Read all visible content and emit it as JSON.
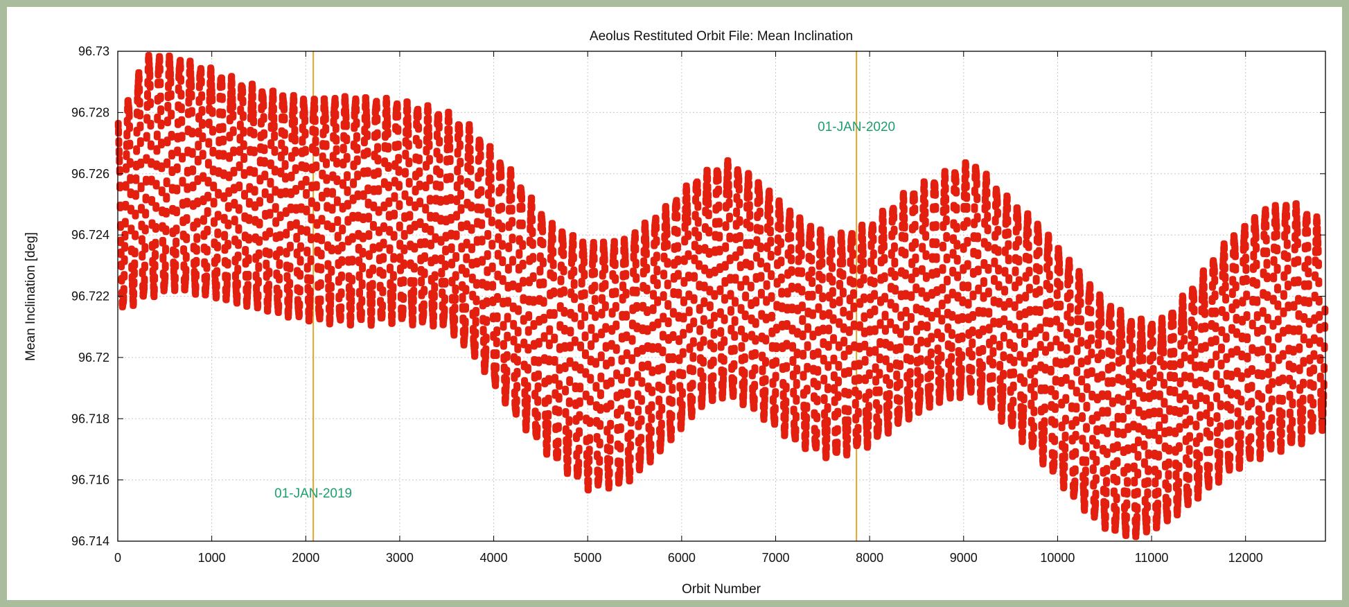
{
  "chart_data": {
    "type": "scatter",
    "title": "Aeolus Restituted Orbit File: Mean Inclination",
    "xlabel": "Orbit Number",
    "ylabel": "Mean Inclination [deg]",
    "xlim": [
      0,
      12850
    ],
    "ylim": [
      96.714,
      96.73
    ],
    "x_ticks": [
      0,
      1000,
      2000,
      3000,
      4000,
      5000,
      6000,
      7000,
      8000,
      9000,
      10000,
      11000,
      12000
    ],
    "y_ticks": [
      96.714,
      96.716,
      96.718,
      96.72,
      96.722,
      96.724,
      96.726,
      96.728,
      96.73
    ],
    "y_tick_labels": [
      "96.714",
      "96.716",
      "96.718",
      "96.72",
      "96.722",
      "96.724",
      "96.726",
      "96.728",
      "96.73"
    ],
    "grid": true,
    "series": [
      {
        "color": "#e3200f",
        "marker": "dots",
        "envelope": {
          "x": [
            0,
            300,
            600,
            1000,
            1500,
            2000,
            2500,
            3000,
            3500,
            3800,
            4200,
            4600,
            5000,
            5400,
            5800,
            6200,
            6500,
            6800,
            7200,
            7600,
            8000,
            8400,
            8800,
            9100,
            9400,
            9800,
            10200,
            10500,
            10800,
            11100,
            11400,
            11800,
            12200,
            12500,
            12850
          ],
          "max": [
            96.7275,
            96.7298,
            96.7298,
            96.7294,
            96.7288,
            96.7284,
            96.7284,
            96.7282,
            96.7278,
            96.7272,
            96.7258,
            96.7242,
            96.7236,
            96.7238,
            96.7248,
            96.726,
            96.7264,
            96.7258,
            96.7246,
            96.7238,
            96.7242,
            96.7252,
            96.7258,
            96.7262,
            96.7252,
            96.7242,
            96.7228,
            96.7218,
            96.7212,
            96.7212,
            96.7222,
            96.7238,
            96.7248,
            96.725,
            96.7242
          ],
          "min": [
            96.7216,
            96.7221,
            96.7224,
            96.7222,
            96.7218,
            96.7214,
            96.7212,
            96.7212,
            96.721,
            96.72,
            96.7182,
            96.7168,
            96.7158,
            96.716,
            96.7172,
            96.7186,
            96.719,
            96.7184,
            96.7174,
            96.7168,
            96.7172,
            96.718,
            96.7186,
            96.7188,
            96.718,
            96.7168,
            96.7154,
            96.7146,
            96.7143,
            96.7147,
            96.7154,
            96.7164,
            96.717,
            96.7172,
            96.7178
          ]
        }
      }
    ],
    "vertical_lines": [
      {
        "x": 2080,
        "label": "01-JAN-2019",
        "color": "#e0a62c"
      },
      {
        "x": 7860,
        "label": "01-JAN-2020",
        "color": "#e0a62c"
      }
    ]
  }
}
